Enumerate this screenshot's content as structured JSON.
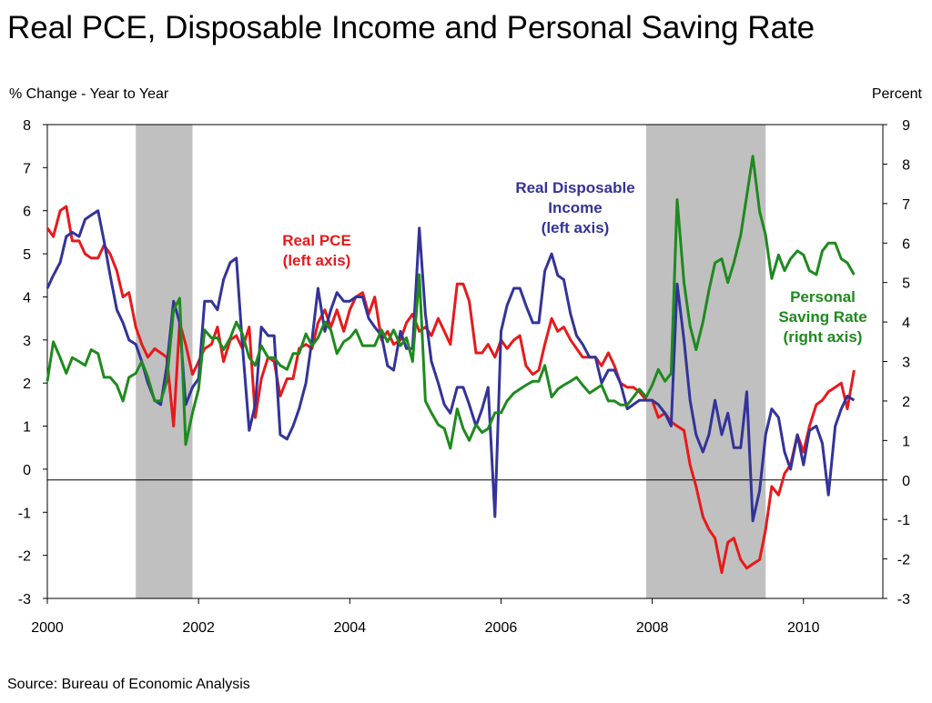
{
  "chart_data": {
    "type": "line",
    "title": "Real PCE, Disposable Income and Personal Saving Rate",
    "y_axis_label": "% Change - Year to Year",
    "y2_axis_label": "Percent",
    "source": "Source: Bureau of Economic Analysis",
    "x": [
      2000,
      2000.08,
      2000.17,
      2000.25,
      2000.33,
      2000.42,
      2000.5,
      2000.58,
      2000.67,
      2000.75,
      2000.83,
      2000.92,
      2001,
      2001.08,
      2001.17,
      2001.25,
      2001.33,
      2001.42,
      2001.5,
      2001.58,
      2001.67,
      2001.75,
      2001.83,
      2001.92,
      2002,
      2002.08,
      2002.17,
      2002.25,
      2002.33,
      2002.42,
      2002.5,
      2002.58,
      2002.67,
      2002.75,
      2002.83,
      2002.92,
      2003,
      2003.08,
      2003.17,
      2003.25,
      2003.33,
      2003.42,
      2003.5,
      2003.58,
      2003.67,
      2003.75,
      2003.83,
      2003.92,
      2004,
      2004.08,
      2004.17,
      2004.25,
      2004.33,
      2004.42,
      2004.5,
      2004.58,
      2004.67,
      2004.75,
      2004.83,
      2004.92,
      2005,
      2005.08,
      2005.17,
      2005.25,
      2005.33,
      2005.42,
      2005.5,
      2005.58,
      2005.67,
      2005.75,
      2005.83,
      2005.92,
      2006,
      2006.08,
      2006.17,
      2006.25,
      2006.33,
      2006.42,
      2006.5,
      2006.58,
      2006.67,
      2006.75,
      2006.83,
      2006.92,
      2007,
      2007.08,
      2007.17,
      2007.25,
      2007.33,
      2007.42,
      2007.5,
      2007.58,
      2007.67,
      2007.75,
      2007.83,
      2007.92,
      2008,
      2008.08,
      2008.17,
      2008.25,
      2008.33,
      2008.42,
      2008.5,
      2008.58,
      2008.67,
      2008.75,
      2008.83,
      2008.92,
      2009,
      2009.08,
      2009.17,
      2009.25,
      2009.33,
      2009.42,
      2009.5,
      2009.58,
      2009.67,
      2009.75,
      2009.83,
      2009.92,
      2010,
      2010.08,
      2010.17,
      2010.25,
      2010.33,
      2010.42,
      2010.5,
      2010.58,
      2010.67
    ],
    "series": [
      {
        "color": "#e8191b",
        "axis": "y",
        "values": [
          5.6,
          5.4,
          6.0,
          6.1,
          5.3,
          5.3,
          5.0,
          4.9,
          4.9,
          5.2,
          5.0,
          4.6,
          4.0,
          4.1,
          3.3,
          2.9,
          2.6,
          2.8,
          2.7,
          2.6,
          1.0,
          3.4,
          2.9,
          2.2,
          2.5,
          2.8,
          2.9,
          3.3,
          2.5,
          3.0,
          3.1,
          2.8,
          3.3,
          1.2,
          2.1,
          2.6,
          2.5,
          1.7,
          2.1,
          2.1,
          2.8,
          2.9,
          2.8,
          3.4,
          3.7,
          3.3,
          3.7,
          3.2,
          3.7,
          4.0,
          4.1,
          3.6,
          4.0,
          3.0,
          3.2,
          2.9,
          3.0,
          3.4,
          3.6,
          3.2,
          3.3,
          3.1,
          3.5,
          3.2,
          2.9,
          4.3,
          4.3,
          3.9,
          2.7,
          2.7,
          2.9,
          2.6,
          3.0,
          2.8,
          3.0,
          3.1,
          2.4,
          2.2,
          2.3,
          2.9,
          3.5,
          3.2,
          3.3,
          3.0,
          2.8,
          2.6,
          2.6,
          2.6,
          2.4,
          2.7,
          2.4,
          2.0,
          1.9,
          1.9,
          1.8,
          1.6,
          1.6,
          1.2,
          1.3,
          1.1,
          1.0,
          0.9,
          0.1,
          -0.4,
          -1.1,
          -1.4,
          -1.6,
          -2.4,
          -1.7,
          -1.6,
          -2.1,
          -2.3,
          -2.2,
          -2.1,
          -1.4,
          -0.4,
          -0.6,
          -0.1,
          0.1,
          0.8,
          0.4,
          1.0,
          1.5,
          1.6,
          1.8,
          1.9,
          2.0,
          1.4,
          2.3
        ]
      },
      {
        "color": "#33339a",
        "axis": "y",
        "values": [
          4.2,
          4.5,
          4.8,
          5.4,
          5.5,
          5.4,
          5.8,
          5.9,
          6.0,
          5.3,
          4.5,
          3.7,
          3.4,
          3.0,
          2.9,
          2.5,
          2.0,
          1.6,
          1.5,
          2.4,
          3.9,
          3.4,
          1.5,
          1.9,
          2.1,
          3.9,
          3.9,
          3.7,
          4.4,
          4.8,
          4.9,
          2.9,
          0.9,
          1.5,
          3.3,
          3.1,
          3.1,
          0.8,
          0.7,
          1.0,
          1.4,
          2.0,
          3.0,
          4.2,
          3.2,
          3.7,
          4.1,
          3.9,
          3.9,
          4.0,
          4.0,
          3.5,
          3.3,
          3.1,
          2.4,
          2.3,
          3.2,
          2.8,
          2.8,
          5.6,
          3.6,
          2.5,
          2.0,
          1.5,
          1.3,
          1.9,
          1.9,
          1.5,
          1.0,
          1.4,
          1.9,
          -1.1,
          3.2,
          3.8,
          4.2,
          4.2,
          3.8,
          3.4,
          3.4,
          4.6,
          5.0,
          4.5,
          4.4,
          3.6,
          3.1,
          2.9,
          2.6,
          2.6,
          2.0,
          2.3,
          2.3,
          2.0,
          1.4,
          1.5,
          1.6,
          1.6,
          1.6,
          1.5,
          1.3,
          1.0,
          4.3,
          3.0,
          1.6,
          0.8,
          0.4,
          0.8,
          1.6,
          0.8,
          1.3,
          0.5,
          0.5,
          1.8,
          -1.2,
          -0.5,
          0.8,
          1.4,
          1.2,
          0.4,
          0.0,
          0.8,
          0.1,
          0.9,
          1.0,
          0.6,
          -0.6,
          1.0,
          1.4,
          1.7,
          1.6
        ]
      },
      {
        "color": "#1e8a1e",
        "axis": "y2",
        "values": [
          2.5,
          3.5,
          3.1,
          2.7,
          3.1,
          3.0,
          2.9,
          3.3,
          3.2,
          2.6,
          2.6,
          2.4,
          2.0,
          2.6,
          2.7,
          3.0,
          2.6,
          2.0,
          2.0,
          2.5,
          4.3,
          4.6,
          0.9,
          1.7,
          2.3,
          3.8,
          3.6,
          3.6,
          3.3,
          3.6,
          4.0,
          3.7,
          3.1,
          2.9,
          3.4,
          3.1,
          3.1,
          2.9,
          2.8,
          3.2,
          3.2,
          3.7,
          3.4,
          3.6,
          4.0,
          3.8,
          3.2,
          3.5,
          3.6,
          3.8,
          3.4,
          3.4,
          3.4,
          3.8,
          3.5,
          3.8,
          3.4,
          3.6,
          3.0,
          5.2,
          2.0,
          1.7,
          1.4,
          1.3,
          0.8,
          1.8,
          1.3,
          1.0,
          1.4,
          1.2,
          1.3,
          1.7,
          1.7,
          2.0,
          2.2,
          2.3,
          2.4,
          2.5,
          2.5,
          2.9,
          2.1,
          2.3,
          2.4,
          2.5,
          2.6,
          2.4,
          2.2,
          2.3,
          2.4,
          2.0,
          2.0,
          1.9,
          1.9,
          2.1,
          2.3,
          2.1,
          2.4,
          2.8,
          2.5,
          2.7,
          7.1,
          5.0,
          3.9,
          3.3,
          4.0,
          4.8,
          5.5,
          5.6,
          5.0,
          5.5,
          6.2,
          7.2,
          8.2,
          6.8,
          6.2,
          5.1,
          5.7,
          5.3,
          5.6,
          5.8,
          5.7,
          5.3,
          5.2,
          5.8,
          6.0,
          6.0,
          5.6,
          5.5,
          5.2
        ]
      }
    ],
    "recessions": [
      [
        2001.17,
        2001.92
      ],
      [
        2007.92,
        2009.5
      ]
    ],
    "recession_color": "#c0c0c0",
    "y2_reference_line": 0,
    "xlim": [
      2000,
      2011.05
    ],
    "xticks": [
      2000,
      2002,
      2004,
      2006,
      2008,
      2010
    ],
    "ylim": [
      -3,
      8
    ],
    "yticks": [
      -3,
      -2,
      -1,
      0,
      1,
      2,
      3,
      4,
      5,
      6,
      7,
      8
    ],
    "y2lim": [
      -3,
      9
    ],
    "y2ticks": [
      -3,
      -2,
      -1,
      0,
      1,
      2,
      3,
      4,
      5,
      6,
      7,
      8,
      9
    ],
    "annotations": [
      {
        "lines": [
          "Real PCE",
          "(left axis)"
        ],
        "color": "#e8191b"
      },
      {
        "lines": [
          "Real Disposable",
          "Income",
          "(left axis)"
        ],
        "color": "#33339a"
      },
      {
        "lines": [
          "Personal",
          "Saving Rate",
          "(right axis)"
        ],
        "color": "#1e8a1e"
      }
    ]
  }
}
